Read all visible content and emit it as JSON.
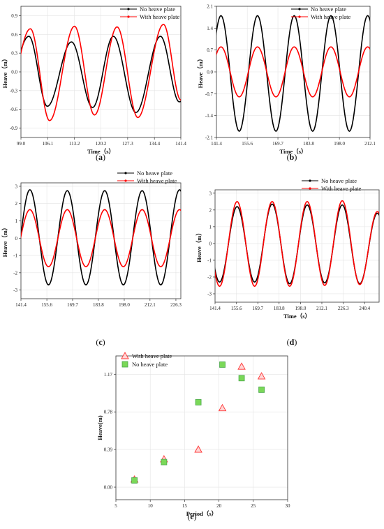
{
  "chart_data": [
    {
      "panel": "(a)",
      "panel_label": {
        "open": "(",
        "letter": "a",
        "close": ")"
      },
      "type": "line",
      "xlabel": "Time（s）",
      "ylabel": "Heave（m）",
      "xlim": [
        99.0,
        141.4
      ],
      "ylim": [
        -1.05,
        1.05
      ],
      "xticks": [
        "99.0",
        "106.1",
        "113.2",
        "120.2",
        "127.3",
        "134.4",
        "141.4"
      ],
      "yticks": [
        "0.9",
        "0.6",
        "0.3",
        "0.0",
        "-0.3",
        "-0.6",
        "-0.9"
      ],
      "legend": "top-right",
      "period": 14.1,
      "series": [
        {
          "name": "No heave plate",
          "color": "#000000",
          "peak_times": [
            101.1,
            112.4,
            123.5,
            136.0
          ],
          "trough_times": [
            106.0,
            118.0,
            129.5,
            141.0
          ],
          "peaks": [
            0.57,
            0.48,
            0.57,
            0.57
          ],
          "troughs": [
            -0.55,
            -0.57,
            -0.65,
            -0.48
          ]
        },
        {
          "name": "With heave plate",
          "color": "#ff0000",
          "peak_times": [
            101.5,
            113.2,
            124.5,
            136.8
          ],
          "trough_times": [
            106.6,
            118.5,
            130.0,
            141.4
          ],
          "peaks": [
            0.69,
            0.73,
            0.72,
            0.76
          ],
          "troughs": [
            -0.78,
            -0.69,
            -0.73,
            -0.45
          ]
        }
      ]
    },
    {
      "panel": "(b)",
      "panel_label": {
        "open": "(",
        "letter": "b",
        "close": ")"
      },
      "type": "line",
      "xlabel": "Time（s）",
      "ylabel": "Heave（m）",
      "xlim": [
        141.4,
        212.1
      ],
      "ylim": [
        -2.1,
        2.1
      ],
      "xticks": [
        "141.4",
        "155.6",
        "169.7",
        "183.8",
        "198.0",
        "212.1"
      ],
      "yticks": [
        "2.1",
        "1.4",
        "0.7",
        "0.0",
        "-0.7",
        "-1.4",
        "-2.1"
      ],
      "legend": "top-right",
      "period": 17.0,
      "series": [
        {
          "name": "No heave plate",
          "color": "#000000",
          "peak_times": [
            143.5,
            160.3,
            177.2,
            194.1,
            211.0
          ],
          "trough_times": [
            151.9,
            168.8,
            185.7,
            202.6
          ],
          "peaks": [
            1.8,
            1.8,
            1.8,
            1.8,
            1.8
          ],
          "troughs": [
            -1.9,
            -1.9,
            -1.9,
            -1.9
          ]
        },
        {
          "name": "With heave plate",
          "color": "#ff0000",
          "peak_times": [
            143.5,
            160.3,
            177.2,
            194.1,
            211.0
          ],
          "trough_times": [
            151.9,
            168.8,
            185.7,
            202.6
          ],
          "peaks": [
            0.8,
            0.8,
            0.8,
            0.8,
            0.8
          ],
          "troughs": [
            -0.8,
            -0.8,
            -0.8,
            -0.8
          ]
        }
      ]
    },
    {
      "panel": "(c)",
      "panel_label": {
        "open": "(",
        "letter": "c",
        "close": ")"
      },
      "type": "line",
      "xlabel": "",
      "ylabel": "Heave（m）",
      "xlim": [
        141.4,
        229.0
      ],
      "ylim": [
        -3.5,
        3.2
      ],
      "xticks": [
        "141.4",
        "155.6",
        "169.7",
        "183.8",
        "198.0",
        "212.1",
        "226.3"
      ],
      "yticks": [
        "3",
        "2",
        "1",
        "0",
        "-1",
        "-2",
        "-3"
      ],
      "legend": "top-right",
      "period": 20.5,
      "series": [
        {
          "name": "No heave plate",
          "color": "#000000",
          "peak_times": [
            146.3,
            166.8,
            187.3,
            207.8,
            228.3
          ],
          "trough_times": [
            156.5,
            177.0,
            197.5,
            218.0
          ],
          "peaks": [
            2.8,
            2.75,
            2.75,
            2.75,
            2.8
          ],
          "troughs": [
            -2.7,
            -2.7,
            -2.7,
            -2.7
          ]
        },
        {
          "name": "With heave plate",
          "color": "#ff0000",
          "peak_times": [
            146.3,
            166.8,
            187.3,
            207.8,
            228.3
          ],
          "trough_times": [
            156.5,
            177.0,
            197.5,
            218.0
          ],
          "peaks": [
            1.65,
            1.65,
            1.65,
            1.65,
            1.65
          ],
          "troughs": [
            -1.65,
            -1.65,
            -1.65,
            -1.65
          ]
        }
      ]
    },
    {
      "panel": "(d)",
      "panel_label": {
        "open": "(",
        "letter": "d",
        "close": ")"
      },
      "type": "line",
      "xlabel": "Time（s）",
      "ylabel": "Heave（m）",
      "xlim": [
        141.4,
        250.0
      ],
      "ylim": [
        -3.5,
        3.2
      ],
      "xticks": [
        "141.4",
        "155.6",
        "169.7",
        "183.8",
        "198.0",
        "212.1",
        "226.3",
        "240.4"
      ],
      "yticks": [
        "3",
        "2",
        "1",
        "0",
        "-1",
        "-2",
        "-3"
      ],
      "legend": "top-right",
      "period": 23.2,
      "series": [
        {
          "name": "No heave plate",
          "color": "#000000",
          "peak_times": [
            156.0,
            179.2,
            202.4,
            225.6,
            248.8
          ],
          "trough_times": [
            144.4,
            167.6,
            190.8,
            214.0,
            237.2
          ],
          "peaks": [
            2.2,
            2.35,
            2.3,
            2.3,
            1.8
          ],
          "troughs": [
            -2.3,
            -2.3,
            -2.4,
            -2.35,
            -2.4
          ]
        },
        {
          "name": "With heave plate",
          "color": "#ff0000",
          "peak_times": [
            156.0,
            179.2,
            202.4,
            225.6,
            248.8
          ],
          "trough_times": [
            144.4,
            167.6,
            190.8,
            214.0,
            237.2
          ],
          "peaks": [
            2.5,
            2.5,
            2.5,
            2.55,
            1.9
          ],
          "troughs": [
            -2.55,
            -2.55,
            -2.55,
            -2.5,
            -2.45
          ]
        }
      ]
    },
    {
      "panel": "(e)",
      "panel_label": {
        "open": "(",
        "letter": "e",
        "close": ")"
      },
      "type": "scatter",
      "xlabel": "Period（s）",
      "ylabel": "Heave(m)",
      "xlim": [
        5,
        30
      ],
      "ylim": [
        -0.13,
        1.36
      ],
      "xticks": [
        "5",
        "10",
        "15",
        "20",
        "25",
        "30"
      ],
      "yticks": [
        "1.17",
        "0.78",
        "0.39",
        "0.00"
      ],
      "legend": "top-left",
      "series": [
        {
          "name": "With heave plate",
          "marker": "triangle",
          "color": "#ff3333",
          "x": [
            7.7,
            12.0,
            17.0,
            20.5,
            23.3,
            26.2
          ],
          "y": [
            0.08,
            0.29,
            0.39,
            0.82,
            1.25,
            1.15
          ]
        },
        {
          "name": "No heave plate",
          "marker": "square",
          "color": "#7ad858",
          "x": [
            7.7,
            12.0,
            17.0,
            20.5,
            23.3,
            26.2
          ],
          "y": [
            0.07,
            0.26,
            0.88,
            1.27,
            1.13,
            1.01
          ]
        }
      ]
    }
  ]
}
